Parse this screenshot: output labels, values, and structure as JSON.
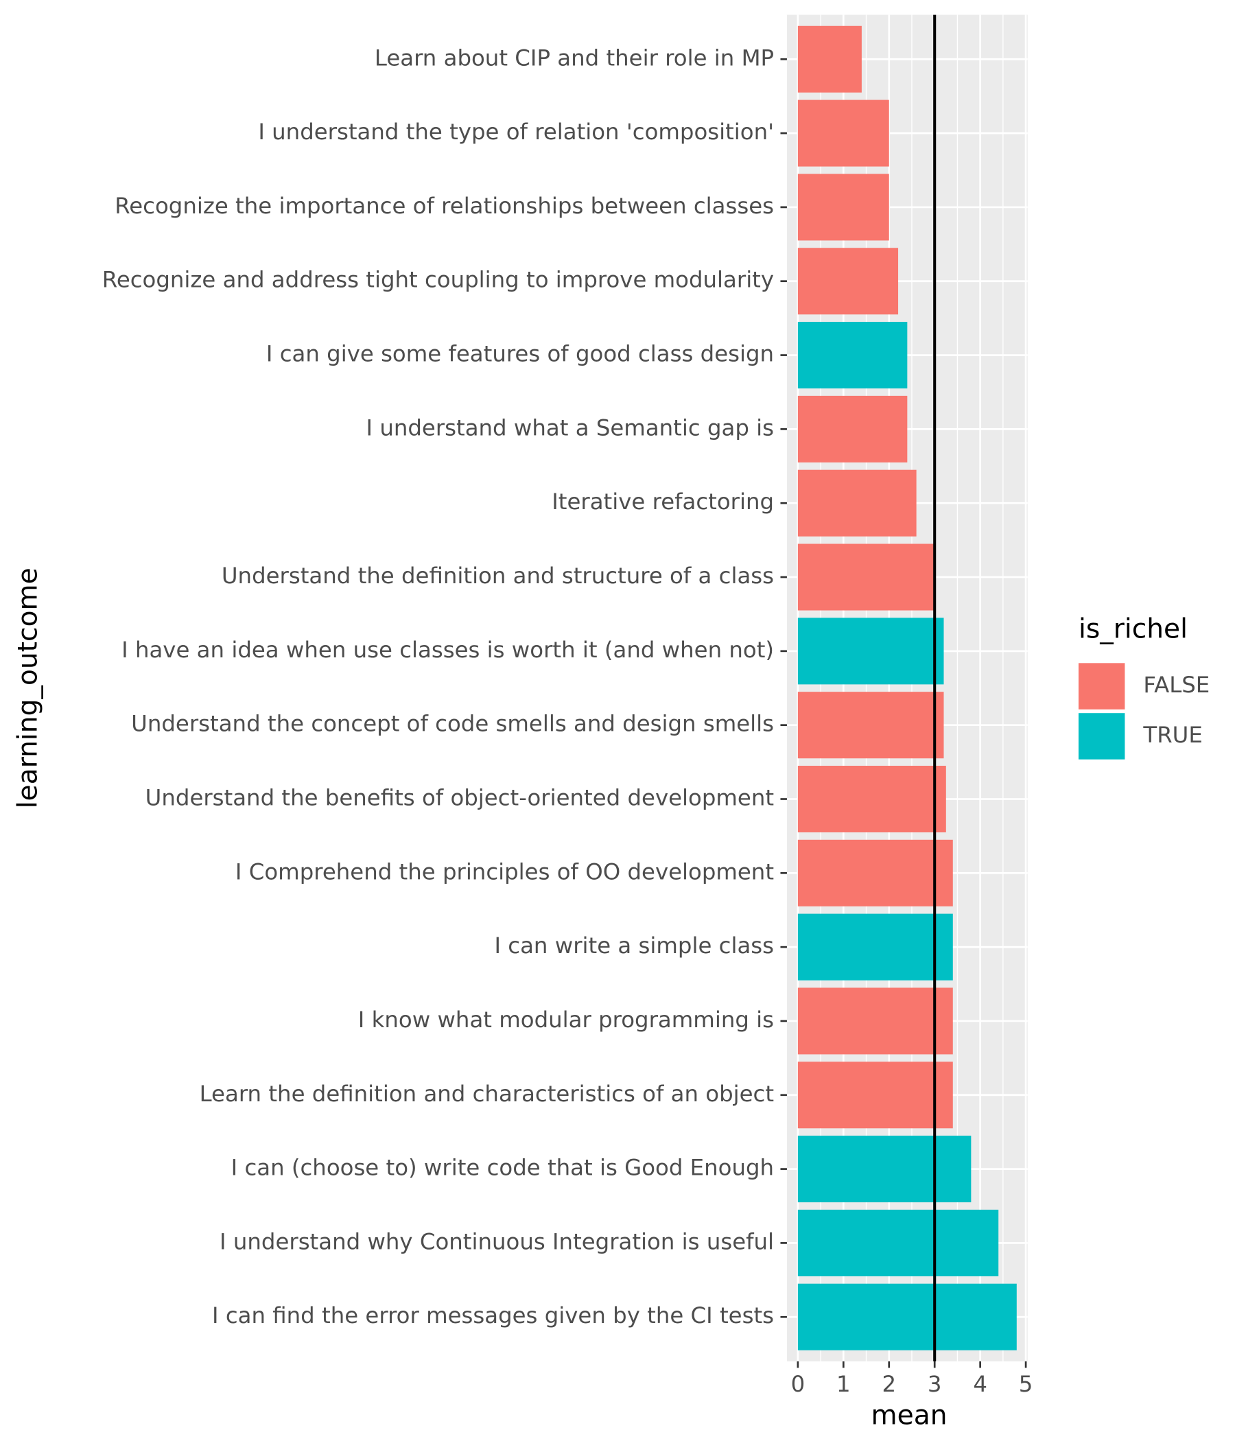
{
  "chart_data": {
    "type": "barh",
    "x_label": "mean",
    "y_label": "learning_outcome",
    "legend_title": "is_richel",
    "categories": [
      "Learn about CIP and their role in MP",
      "I understand the type of relation 'composition'",
      "Recognize the importance of relationships between classes",
      "Recognize and address tight coupling to improve modularity",
      "I can give some features of good class design",
      "I understand what a Semantic gap is",
      "Iterative refactoring",
      "Understand the definition and structure of a class",
      "I have an idea when use classes is worth it (and when not)",
      "Understand the concept of code smells and design smells",
      "Understand the benefits of object-oriented development",
      "I Comprehend the principles of OO development",
      "I can write a simple class",
      "I know what modular programming is",
      "Learn the definition and characteristics of an object",
      "I can (choose to) write code that is Good Enough",
      "I understand why Continuous Integration is useful",
      "I can find the error messages given by the CI tests"
    ],
    "series": [
      {
        "name": "FALSE",
        "color": "#f8766d",
        "values": [
          1.4,
          2.0,
          2.0,
          2.2,
          null,
          2.4,
          2.6,
          3.0,
          null,
          3.2,
          3.25,
          3.4,
          null,
          3.4,
          3.4,
          null,
          null,
          null
        ]
      },
      {
        "name": "TRUE",
        "color": "#00bfc4",
        "values": [
          null,
          null,
          null,
          null,
          2.4,
          null,
          null,
          null,
          3.2,
          null,
          null,
          null,
          3.4,
          null,
          null,
          3.8,
          4.4,
          4.8
        ]
      }
    ],
    "xintercept": 3,
    "xlim": [
      -0.24,
      5.04
    ],
    "xticks": [
      0,
      1,
      2,
      3,
      4,
      5
    ],
    "grid": true
  }
}
